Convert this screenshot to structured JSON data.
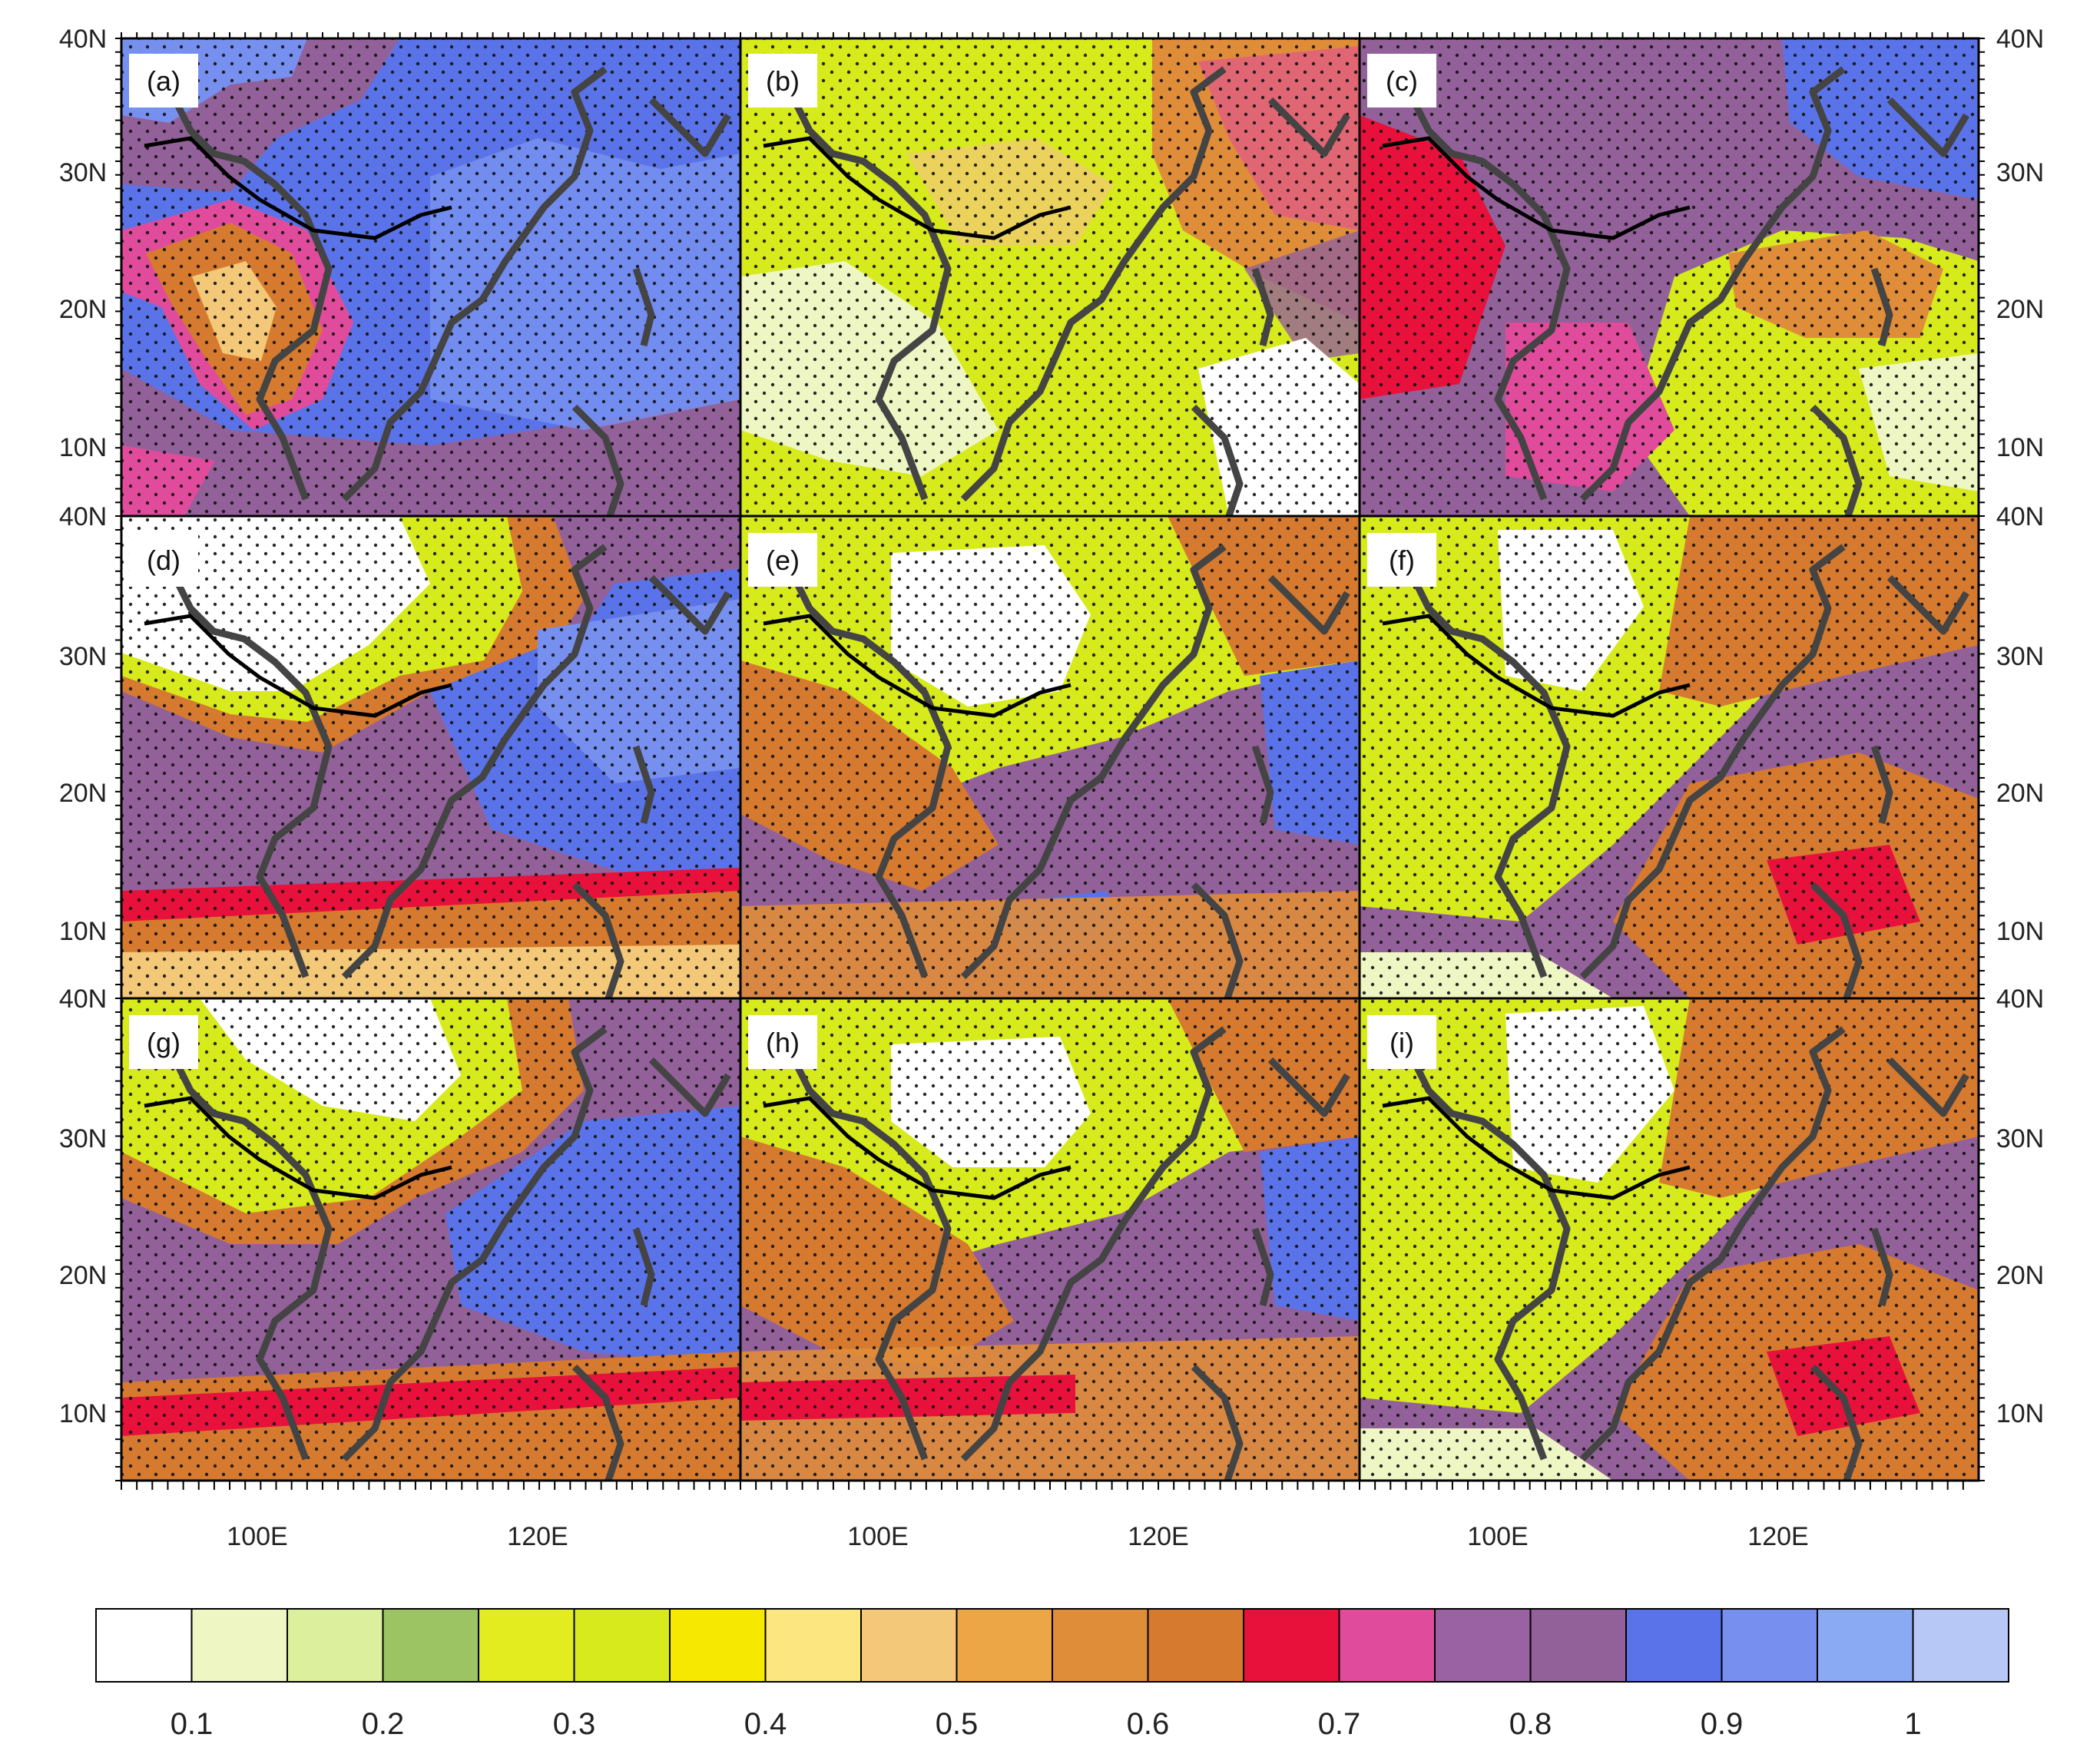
{
  "figure": {
    "panel_labels": [
      "(a)",
      "(b)",
      "(c)",
      "(d)",
      "(e)",
      "(f)",
      "(g)",
      "(h)",
      "(i)"
    ],
    "lat_ticks": [
      "40N",
      "30N",
      "20N",
      "10N"
    ],
    "lon_ticks": [
      "100E",
      "120E"
    ]
  },
  "colorbar": {
    "colors": [
      "#ffffff",
      "#eef6c4",
      "#dcef9c",
      "#9cc463",
      "#e2ec1e",
      "#d6ea1c",
      "#f7e800",
      "#fce680",
      "#f3c879",
      "#eca646",
      "#e08d39",
      "#d67a2f",
      "#e8113b",
      "#e04c9b",
      "#9a62a2",
      "#936199",
      "#5b73e8",
      "#7790f0",
      "#8aaaf3",
      "#b7c8f6"
    ],
    "labels": [
      "0.1",
      "0.2",
      "0.3",
      "0.4",
      "0.5",
      "0.6",
      "0.7",
      "0.8",
      "0.9",
      "1"
    ]
  },
  "coastline_color": "#444444",
  "border_color": "#000000"
}
